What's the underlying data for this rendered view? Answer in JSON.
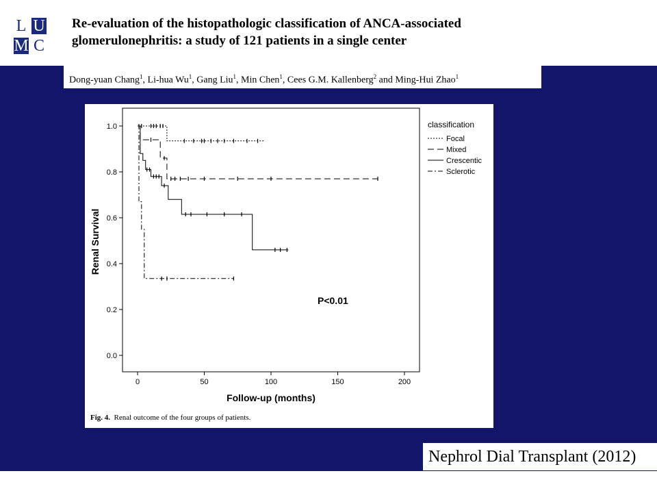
{
  "logo": {
    "letters": [
      "L",
      "U",
      "M",
      "C"
    ]
  },
  "title": {
    "line1": "Re-evaluation of the histopathologic classification of ANCA-associated",
    "line2": "glomerulonephritis: a study of 121 patients in a single center"
  },
  "authors": [
    {
      "name": "Dong-yuan Chang",
      "sup": "1"
    },
    {
      "name": "Li-hua Wu",
      "sup": "1"
    },
    {
      "name": "Gang Liu",
      "sup": "1"
    },
    {
      "name": "Min Chen",
      "sup": "1"
    },
    {
      "name": "Cees G.M. Kallenberg",
      "sup": "2"
    },
    {
      "name": "Ming-Hui Zhao",
      "sup": "1"
    }
  ],
  "caption": {
    "label": "Fig. 4.",
    "text": "Renal outcome of the four groups of patients."
  },
  "journal": "Nephrol Dial Transplant (2012)",
  "colors": {
    "slide_bg": "#13156b",
    "logo_blue": "#1a2a80",
    "logo_accent": "#5fa0c8"
  },
  "chart_data": {
    "type": "line",
    "step": true,
    "xlabel": "Follow-up (months)",
    "ylabel": "Renal Survival",
    "xlim": [
      0,
      210
    ],
    "ylim": [
      0.0,
      1.0
    ],
    "xticks": [
      0,
      50,
      100,
      150,
      200
    ],
    "xtick_labels": [
      "0",
      "50",
      "100",
      "150",
      "200"
    ],
    "yticks": [
      0.0,
      0.2,
      0.4,
      0.6,
      0.8,
      1.0
    ],
    "ytick_labels": [
      "0.0",
      "0.2",
      "0.4",
      "0.6",
      "0.8",
      "1.0"
    ],
    "legend_title": "classification",
    "legend_position": "top-right, outside plot",
    "annotation": "P<0.01",
    "series": [
      {
        "name": "Focal",
        "dash": "2,2",
        "steps": [
          [
            0,
            1.0
          ],
          [
            22,
            1.0
          ],
          [
            22,
            0.935
          ],
          [
            95,
            0.935
          ]
        ],
        "censored": [
          [
            1,
            1.0
          ],
          [
            3,
            1.0
          ],
          [
            10,
            1.0
          ],
          [
            12,
            1.0
          ],
          [
            14,
            1.0
          ],
          [
            17,
            1.0
          ],
          [
            19,
            1.0
          ],
          [
            35,
            0.935
          ],
          [
            42,
            0.935
          ],
          [
            48,
            0.935
          ],
          [
            50,
            0.935
          ],
          [
            55,
            0.935
          ],
          [
            60,
            0.935
          ],
          [
            65,
            0.935
          ],
          [
            72,
            0.935
          ],
          [
            82,
            0.935
          ],
          [
            90,
            0.935
          ]
        ]
      },
      {
        "name": "Mixed",
        "dash": "9,5",
        "steps": [
          [
            0,
            1.0
          ],
          [
            2,
            1.0
          ],
          [
            2,
            0.94
          ],
          [
            17,
            0.94
          ],
          [
            17,
            0.86
          ],
          [
            22,
            0.86
          ],
          [
            22,
            0.77
          ],
          [
            180,
            0.77
          ]
        ],
        "censored": [
          [
            10,
            0.94
          ],
          [
            20,
            0.86
          ],
          [
            25,
            0.77
          ],
          [
            28,
            0.77
          ],
          [
            32,
            0.77
          ],
          [
            38,
            0.77
          ],
          [
            50,
            0.77
          ],
          [
            75,
            0.77
          ],
          [
            100,
            0.77
          ],
          [
            180,
            0.77
          ]
        ]
      },
      {
        "name": "Crescentic",
        "dash": "",
        "steps": [
          [
            0,
            1.0
          ],
          [
            2,
            1.0
          ],
          [
            2,
            0.88
          ],
          [
            4,
            0.88
          ],
          [
            4,
            0.85
          ],
          [
            6,
            0.85
          ],
          [
            6,
            0.81
          ],
          [
            10,
            0.81
          ],
          [
            10,
            0.78
          ],
          [
            18,
            0.78
          ],
          [
            18,
            0.74
          ],
          [
            23,
            0.74
          ],
          [
            23,
            0.68
          ],
          [
            33,
            0.68
          ],
          [
            33,
            0.615
          ],
          [
            86,
            0.615
          ],
          [
            86,
            0.46
          ],
          [
            113,
            0.46
          ]
        ],
        "censored": [
          [
            7,
            0.81
          ],
          [
            9,
            0.81
          ],
          [
            12,
            0.78
          ],
          [
            14,
            0.78
          ],
          [
            16,
            0.78
          ],
          [
            20,
            0.74
          ],
          [
            36,
            0.615
          ],
          [
            40,
            0.615
          ],
          [
            52,
            0.615
          ],
          [
            65,
            0.615
          ],
          [
            78,
            0.615
          ],
          [
            103,
            0.46
          ],
          [
            107,
            0.46
          ],
          [
            112,
            0.46
          ]
        ]
      },
      {
        "name": "Sclerotic",
        "dash": "7,3,2,3",
        "steps": [
          [
            0,
            1.0
          ],
          [
            1,
            1.0
          ],
          [
            1,
            0.67
          ],
          [
            3,
            0.67
          ],
          [
            3,
            0.55
          ],
          [
            5,
            0.55
          ],
          [
            5,
            0.335
          ],
          [
            72,
            0.335
          ]
        ],
        "censored": [
          [
            18,
            0.335
          ],
          [
            22,
            0.335
          ],
          [
            72,
            0.335
          ]
        ]
      }
    ]
  }
}
